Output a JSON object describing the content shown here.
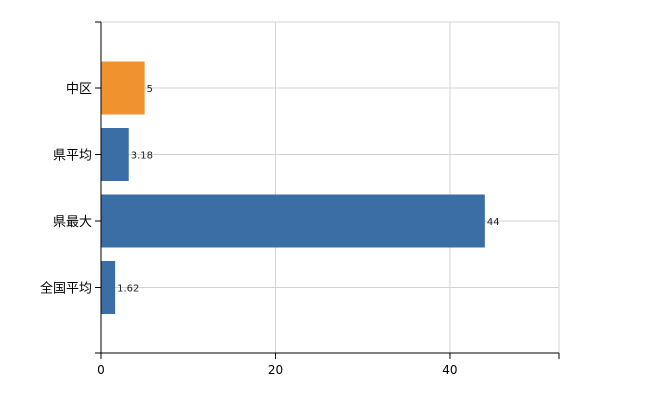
{
  "chart_data": {
    "type": "bar",
    "orientation": "horizontal",
    "categories": [
      "中区",
      "県平均",
      "県最大",
      "全国平均"
    ],
    "values": [
      5,
      3.18,
      44,
      1.62
    ],
    "value_labels": [
      "5",
      "3.18",
      "44",
      "1.62"
    ],
    "title": "",
    "xlabel": "",
    "ylabel": "",
    "xlim": [
      0,
      52.5
    ],
    "x_ticks": [
      0,
      20,
      40
    ],
    "x_tick_labels": [
      "0",
      "20",
      "40"
    ],
    "grid": true,
    "legend": "none",
    "colors": {
      "default": "#3a6ea5",
      "highlight": "#f0922e"
    },
    "highlight_category": "中区"
  }
}
